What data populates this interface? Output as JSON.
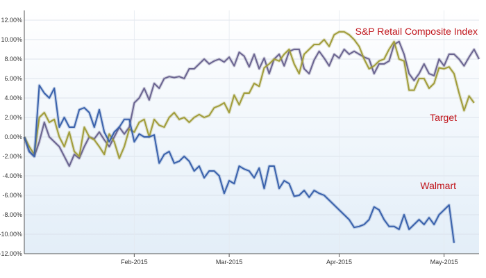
{
  "chart_data": {
    "type": "line",
    "title": "",
    "xlabel": "",
    "ylabel": "",
    "ylim": [
      -12,
      13
    ],
    "grid": true,
    "legend": "inline",
    "y_ticks": [
      {
        "value": 12,
        "label": "12.00%"
      },
      {
        "value": 10,
        "label": "10.00%"
      },
      {
        "value": 8,
        "label": "8.00%"
      },
      {
        "value": 6,
        "label": "6.00%"
      },
      {
        "value": 4,
        "label": "4.00%"
      },
      {
        "value": 2,
        "label": "2.00%"
      },
      {
        "value": 0,
        "label": "0.00%"
      },
      {
        "value": -2,
        "label": "-2.00%"
      },
      {
        "value": -4,
        "label": "-4.00%"
      },
      {
        "value": -6,
        "label": "-6.00%"
      },
      {
        "value": -8,
        "label": "-8.00%"
      },
      {
        "value": -10,
        "label": "-10.00%"
      },
      {
        "value": -12,
        "label": "-12.00%"
      }
    ],
    "x_ticks": [
      {
        "index": 22,
        "label": "Feb-2015"
      },
      {
        "index": 41,
        "label": "Mar-2015"
      },
      {
        "index": 63,
        "label": "Apr-2015"
      },
      {
        "index": 84,
        "label": "May-2015"
      }
    ],
    "series": [
      {
        "name": "S&P Retail Composite Index",
        "color": "#6b6591",
        "values": [
          0.0,
          -1.5,
          -2.0,
          -0.5,
          1.5,
          0.0,
          -0.5,
          -1.0,
          -2.0,
          -3.0,
          -1.8,
          -2.2,
          -1.0,
          0.0,
          -0.2,
          0.5,
          -0.3,
          -1.0,
          0.0,
          1.0,
          0.3,
          1.0,
          3.5,
          4.0,
          5.0,
          3.8,
          5.5,
          5.0,
          6.0,
          6.2,
          6.1,
          6.2,
          6.0,
          7.0,
          7.0,
          7.5,
          8.0,
          7.5,
          7.8,
          8.0,
          7.7,
          8.2,
          7.3,
          8.7,
          8.3,
          7.2,
          8.5,
          7.0,
          8.1,
          6.5,
          8.0,
          8.5,
          7.3,
          8.8,
          9.0,
          9.0,
          7.0,
          6.5,
          7.9,
          8.8,
          8.1,
          7.3,
          8.5,
          8.1,
          9.0,
          8.5,
          8.8,
          8.5,
          8.2,
          8.0,
          6.5,
          7.5,
          7.5,
          7.8,
          9.5,
          9.8,
          8.5,
          6.5,
          5.8,
          6.5,
          7.5,
          6.5,
          6.3,
          8.0,
          7.3,
          8.5,
          8.5,
          8.0,
          7.3,
          8.2,
          9.0,
          8.0
        ]
      },
      {
        "name": "Target",
        "color": "#a19d3b",
        "values": [
          0.0,
          -1.0,
          -1.8,
          2.0,
          2.5,
          1.5,
          1.8,
          0.0,
          -1.0,
          0.5,
          -1.5,
          -2.0,
          1.0,
          0.0,
          -0.3,
          -1.0,
          -1.8,
          0.3,
          -0.5,
          -2.2,
          -1.0,
          0.8,
          0.5,
          1.5,
          1.8,
          0.0,
          1.8,
          1.2,
          1.0,
          2.0,
          2.5,
          1.8,
          2.0,
          1.5,
          2.0,
          2.3,
          2.0,
          2.2,
          3.0,
          3.2,
          3.5,
          2.5,
          4.3,
          3.3,
          4.5,
          4.5,
          5.5,
          5.2,
          7.1,
          7.5,
          8.0,
          7.8,
          8.5,
          9.0,
          7.5,
          6.5,
          8.5,
          9.0,
          9.5,
          9.5,
          10.0,
          9.3,
          10.5,
          10.8,
          10.8,
          10.5,
          10.0,
          9.3,
          8.0,
          7.0,
          7.3,
          7.8,
          8.0,
          9.0,
          9.8,
          8.0,
          7.8,
          4.8,
          4.8,
          6.0,
          6.0,
          5.0,
          5.5,
          7.1,
          7.0,
          7.2,
          6.5,
          4.5,
          2.7,
          4.2,
          3.5
        ]
      },
      {
        "name": "Walmart",
        "color": "#3a62ac",
        "values": [
          0.0,
          -1.5,
          -2.0,
          5.3,
          4.5,
          4.0,
          5.0,
          1.0,
          2.0,
          1.0,
          1.0,
          2.8,
          3.0,
          2.5,
          1.0,
          2.8,
          0.5,
          -0.5,
          0.5,
          1.0,
          1.8,
          1.8,
          -0.5,
          0.3,
          0.0,
          0.0,
          0.2,
          -2.7,
          -1.8,
          -1.5,
          -2.7,
          -2.5,
          -2.0,
          -2.5,
          -3.5,
          -3.0,
          -4.2,
          -3.5,
          -3.5,
          -4.0,
          -5.8,
          -4.5,
          -4.8,
          -3.0,
          -3.3,
          -3.5,
          -4.2,
          -3.2,
          -5.3,
          -3.0,
          -3.0,
          -5.3,
          -4.5,
          -4.8,
          -6.1,
          -6.0,
          -5.5,
          -6.2,
          -5.5,
          -5.8,
          -6.0,
          -6.5,
          -7.0,
          -7.5,
          -8.0,
          -8.5,
          -9.3,
          -9.2,
          -9.0,
          -8.5,
          -7.2,
          -7.5,
          -8.5,
          -9.2,
          -9.2,
          -9.5,
          -8.0,
          -9.5,
          -9.0,
          -8.5,
          -9.0,
          -8.3,
          -9.0,
          -8.0,
          -7.5,
          -7.0,
          -10.9
        ]
      }
    ],
    "annotations": [
      {
        "text": "S&P Retail Composite Index",
        "color": "#c0141a",
        "series": 0
      },
      {
        "text": "Target",
        "color": "#c0141a",
        "series": 1
      },
      {
        "text": "Walmart",
        "color": "#c0141a",
        "series": 2
      }
    ]
  }
}
